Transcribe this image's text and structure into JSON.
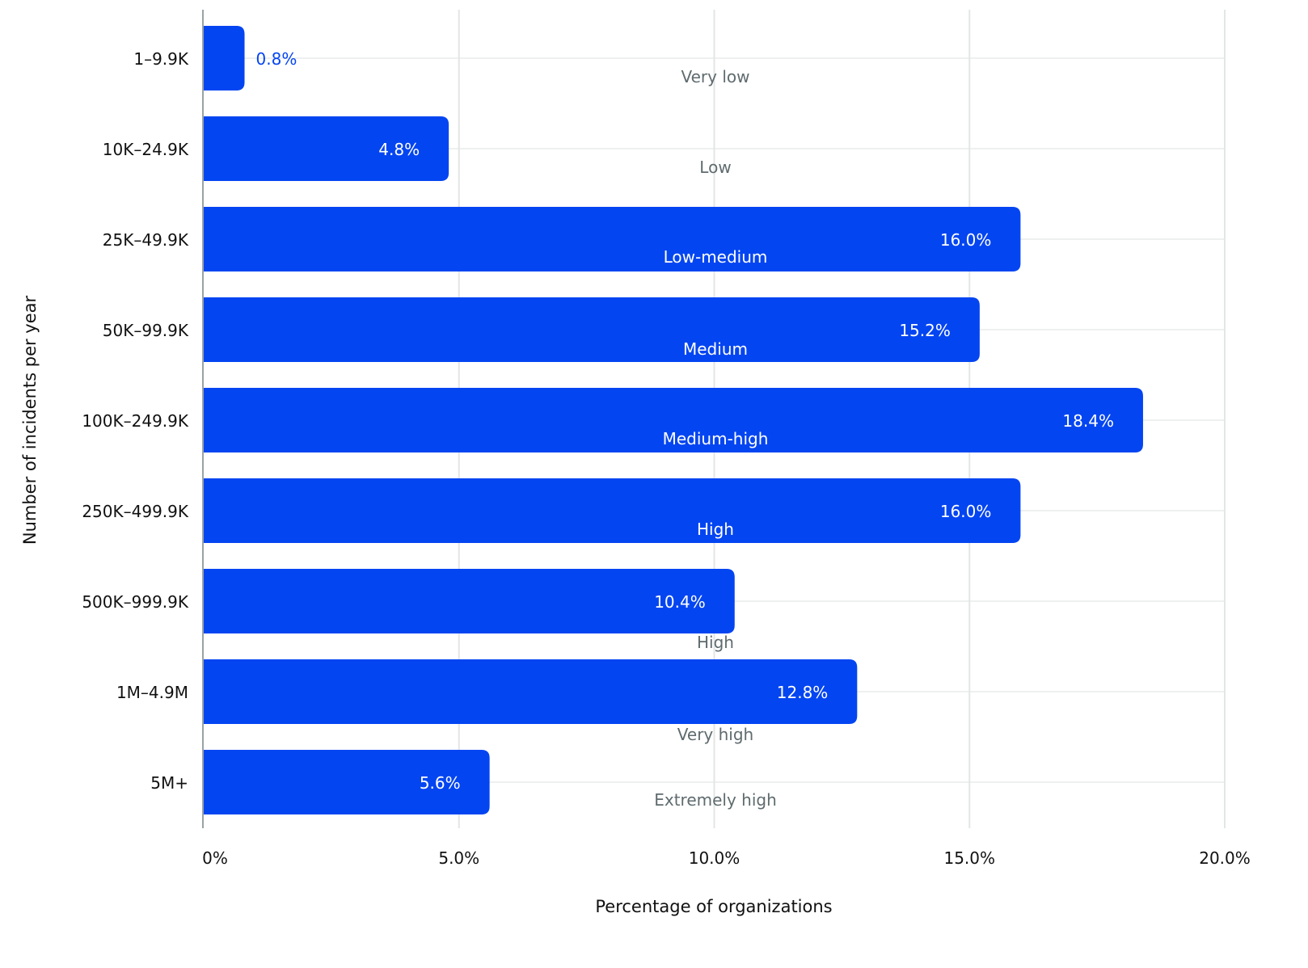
{
  "chart_data": {
    "type": "bar",
    "orientation": "horizontal",
    "title": "",
    "xlabel": "Percentage of organizations",
    "ylabel": "Number of incidents per year",
    "xlim": [
      0,
      20
    ],
    "xticks": [
      0,
      5,
      10,
      15,
      20
    ],
    "xtick_labels": [
      "0%",
      "5.0%",
      "10.0%",
      "15.0%",
      "20.0%"
    ],
    "categories": [
      "1–9.9K",
      "10K–24.9K",
      "25K–49.9K",
      "50K–99.9K",
      "100K–249.9K",
      "250K–499.9K",
      "500K–999.9K",
      "1M–4.9M",
      "5M+"
    ],
    "values": [
      0.8,
      4.8,
      16.0,
      15.2,
      18.4,
      16.0,
      10.4,
      12.8,
      5.6
    ],
    "value_labels": [
      "0.8%",
      "4.8%",
      "16.0%",
      "15.2%",
      "18.4%",
      "16.0%",
      "10.4%",
      "12.8%",
      "5.6%"
    ],
    "annotations": [
      "Very low",
      "Low",
      "Low-medium",
      "Medium",
      "Medium-high",
      "High",
      "High",
      "Very high",
      "Extremely high"
    ],
    "grid": true,
    "colors": {
      "bar": "#0445F2",
      "annotation": "#5F6B6E",
      "grid": "#E3E6E6",
      "axis": "#9AA3A5",
      "text": "#111111"
    }
  }
}
